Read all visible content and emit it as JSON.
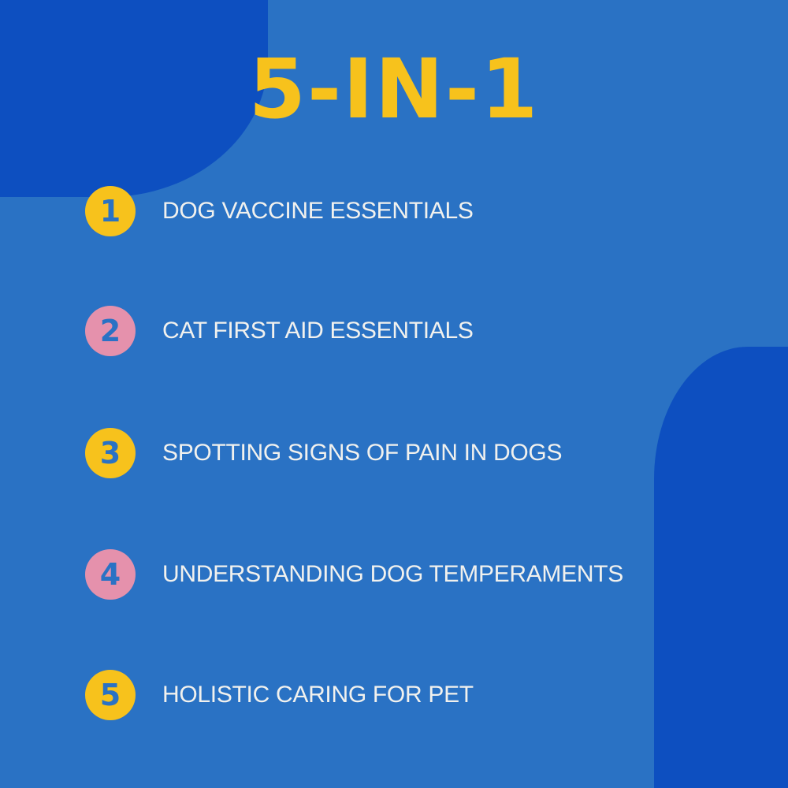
{
  "title": "5-IN-1",
  "colors": {
    "background": "#2a72c4",
    "dark_blob": "#0d4fc0",
    "title": "#f7c21c",
    "yellow_badge": "#f7c21c",
    "pink_badge": "#e591ac",
    "text": "#f1f1ee"
  },
  "items": [
    {
      "number": "1",
      "label": "DOG VACCINE ESSENTIALS",
      "badge_color": "#f7c21c"
    },
    {
      "number": "2",
      "label": "CAT FIRST AID ESSENTIALS",
      "badge_color": "#e591ac"
    },
    {
      "number": "3",
      "label": "SPOTTING SIGNS OF PAIN IN DOGS",
      "badge_color": "#f7c21c"
    },
    {
      "number": "4",
      "label": "UNDERSTANDING DOG TEMPERAMENTS",
      "badge_color": "#e591ac"
    },
    {
      "number": "5",
      "label": "HOLISTIC CARING FOR PET",
      "badge_color": "#f7c21c"
    }
  ]
}
